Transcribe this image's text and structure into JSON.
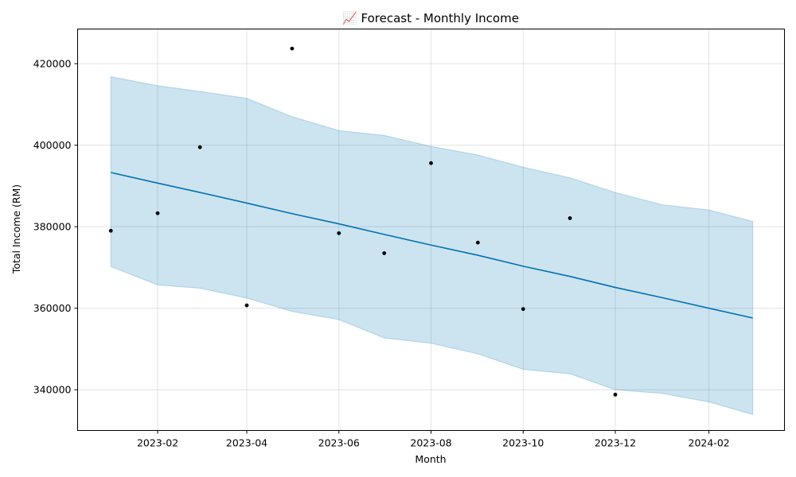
{
  "chart_data": {
    "type": "line",
    "title": "📈 Forecast - Monthly Income",
    "xlabel": "Month",
    "ylabel": "Total Income (RM)",
    "x_range": [
      "2022-12-10",
      "2024-03-22"
    ],
    "ylim": [
      330000,
      428500
    ],
    "x_ticks": [
      "2023-02",
      "2023-04",
      "2023-06",
      "2023-08",
      "2023-10",
      "2023-12",
      "2024-02"
    ],
    "y_ticks": [
      340000,
      360000,
      380000,
      400000,
      420000
    ],
    "grid": true,
    "colors": {
      "forecast_line": "#0072b2",
      "interval_fill": "#0072b2",
      "points": "#000000"
    },
    "actual": {
      "x": [
        "2023-01-01",
        "2023-02-01",
        "2023-03-01",
        "2023-04-01",
        "2023-05-01",
        "2023-06-01",
        "2023-07-01",
        "2023-08-01",
        "2023-09-01",
        "2023-10-01",
        "2023-11-01",
        "2023-12-01"
      ],
      "y": [
        379000,
        383300,
        399500,
        360700,
        423700,
        378400,
        373500,
        395600,
        376100,
        359800,
        382100,
        338800
      ]
    },
    "forecast": {
      "x": [
        "2023-01-01",
        "2023-02-01",
        "2023-03-01",
        "2023-04-01",
        "2023-05-01",
        "2023-06-01",
        "2023-07-01",
        "2023-08-01",
        "2023-09-01",
        "2023-10-01",
        "2023-11-01",
        "2023-12-01",
        "2024-01-01",
        "2024-02-01",
        "2024-03-01"
      ],
      "yhat": [
        393300,
        390700,
        388400,
        385800,
        383200,
        380700,
        378100,
        375500,
        373000,
        370300,
        367800,
        365100,
        362600,
        360000,
        357600
      ],
      "yhat_upper": [
        416800,
        414600,
        413200,
        411500,
        407000,
        403600,
        402400,
        399700,
        397600,
        394600,
        392000,
        388400,
        385400,
        384100,
        381300
      ],
      "yhat_lower": [
        370200,
        365700,
        364900,
        362500,
        359200,
        357200,
        352700,
        351400,
        348800,
        345000,
        343900,
        340000,
        339100,
        337000,
        333900
      ]
    }
  }
}
